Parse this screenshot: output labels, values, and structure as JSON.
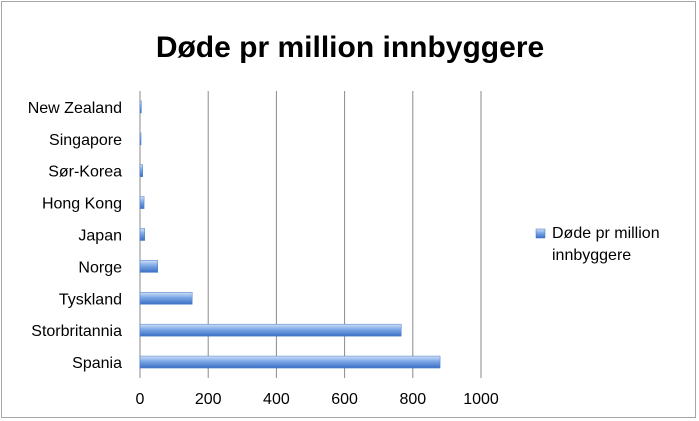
{
  "chart_data": {
    "type": "bar",
    "orientation": "horizontal",
    "title": "Døde pr million innbyggere",
    "xlabel": "",
    "ylabel": "",
    "categories": [
      "New Zealand",
      "Singapore",
      "Sør-Korea",
      "Hong Kong",
      "Japan",
      "Norge",
      "Tyskland",
      "Storbritannia",
      "Spania"
    ],
    "series": [
      {
        "name": "Døde pr million innbyggere",
        "values": [
          4,
          3,
          8,
          12,
          14,
          52,
          153,
          766,
          880
        ]
      }
    ],
    "xlim": [
      0,
      1000
    ],
    "xticks": [
      0,
      200,
      400,
      600,
      800,
      1000
    ],
    "grid": "vertical",
    "legend_position": "right",
    "colors": {
      "bar": "#5b8fdb",
      "bar_light": "#a9c6f2",
      "bar_dark": "#3f6fbf",
      "grid": "#8a8a8a"
    }
  }
}
